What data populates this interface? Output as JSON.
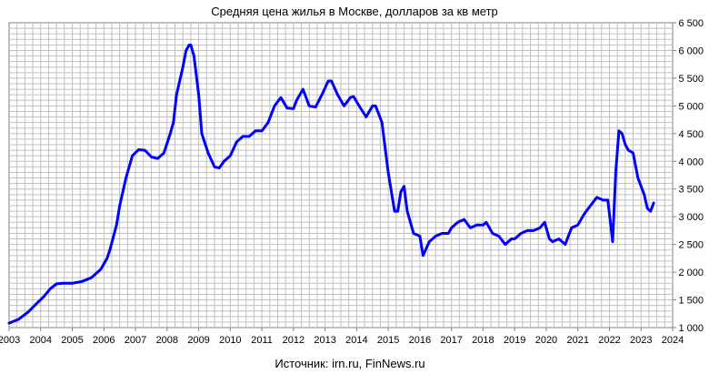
{
  "chart_data": {
    "type": "line",
    "title": "Средняя цена жилья в Москве, долларов за кв метр",
    "source": "Источник: irn.ru, FinNews.ru",
    "xlabel": "",
    "ylabel": "",
    "xlim": [
      2003,
      2024
    ],
    "ylim": [
      1000,
      6500
    ],
    "x_ticks": [
      "2003",
      "2004",
      "2005",
      "2006",
      "2007",
      "2008",
      "2009",
      "2010",
      "2011",
      "2012",
      "2013",
      "2014",
      "2015",
      "2016",
      "2017",
      "2018",
      "2019",
      "2020",
      "2021",
      "2022",
      "2023",
      "2024"
    ],
    "y_ticks": [
      "1 000",
      "1 500",
      "2 000",
      "2 500",
      "3 000",
      "3 500",
      "4 000",
      "4 500",
      "5 000",
      "5 500",
      "6 000",
      "6 500"
    ],
    "grid": true,
    "legend": "none",
    "line_color": "#0000ff",
    "series": [
      {
        "x": [
          2003.0,
          2003.3,
          2003.6,
          2003.9,
          2004.1,
          2004.3,
          2004.5,
          2004.7,
          2005.0,
          2005.3,
          2005.6,
          2005.9,
          2006.1,
          2006.2,
          2006.4,
          2006.5,
          2006.7,
          2006.9,
          2007.1,
          2007.3,
          2007.5,
          2007.7,
          2007.9,
          2008.1,
          2008.2,
          2008.3,
          2008.5,
          2008.6,
          2008.7,
          2008.75,
          2008.85,
          2009.0,
          2009.1,
          2009.3,
          2009.5,
          2009.65,
          2009.8,
          2010.0,
          2010.2,
          2010.4,
          2010.6,
          2010.8,
          2011.0,
          2011.2,
          2011.4,
          2011.6,
          2011.8,
          2012.0,
          2012.1,
          2012.3,
          2012.5,
          2012.7,
          2012.9,
          2013.1,
          2013.2,
          2013.4,
          2013.6,
          2013.8,
          2013.9,
          2014.1,
          2014.3,
          2014.5,
          2014.6,
          2014.7,
          2014.8,
          2015.0,
          2015.2,
          2015.3,
          2015.4,
          2015.5,
          2015.6,
          2015.8,
          2016.0,
          2016.1,
          2016.3,
          2016.5,
          2016.7,
          2016.9,
          2017.0,
          2017.2,
          2017.4,
          2017.6,
          2017.8,
          2018.0,
          2018.1,
          2018.3,
          2018.5,
          2018.7,
          2018.9,
          2019.0,
          2019.2,
          2019.4,
          2019.6,
          2019.8,
          2019.95,
          2020.1,
          2020.2,
          2020.4,
          2020.6,
          2020.8,
          2021.0,
          2021.2,
          2021.4,
          2021.6,
          2021.8,
          2021.95,
          2022.1,
          2022.2,
          2022.3,
          2022.4,
          2022.5,
          2022.6,
          2022.75,
          2022.9,
          2023.1,
          2023.2,
          2023.3,
          2023.4
        ],
        "y": [
          1080,
          1150,
          1280,
          1450,
          1560,
          1700,
          1790,
          1800,
          1800,
          1830,
          1900,
          2050,
          2250,
          2420,
          2850,
          3200,
          3700,
          4100,
          4210,
          4200,
          4080,
          4050,
          4150,
          4500,
          4700,
          5200,
          5700,
          6000,
          6100,
          6100,
          5900,
          5200,
          4500,
          4150,
          3900,
          3880,
          4000,
          4100,
          4350,
          4450,
          4450,
          4550,
          4550,
          4700,
          5000,
          5150,
          4960,
          4950,
          5100,
          5300,
          5000,
          4980,
          5200,
          5450,
          5450,
          5200,
          5000,
          5150,
          5170,
          4980,
          4800,
          5000,
          5000,
          4850,
          4700,
          3800,
          3100,
          3100,
          3450,
          3550,
          3100,
          2700,
          2650,
          2300,
          2550,
          2650,
          2700,
          2700,
          2800,
          2900,
          2950,
          2800,
          2850,
          2850,
          2900,
          2700,
          2650,
          2500,
          2600,
          2600,
          2700,
          2750,
          2750,
          2800,
          2900,
          2600,
          2550,
          2600,
          2500,
          2800,
          2850,
          3050,
          3200,
          3350,
          3300,
          3300,
          2550,
          3800,
          4550,
          4500,
          4300,
          4200,
          4150,
          3700,
          3400,
          3150,
          3100,
          3250
        ]
      }
    ]
  }
}
